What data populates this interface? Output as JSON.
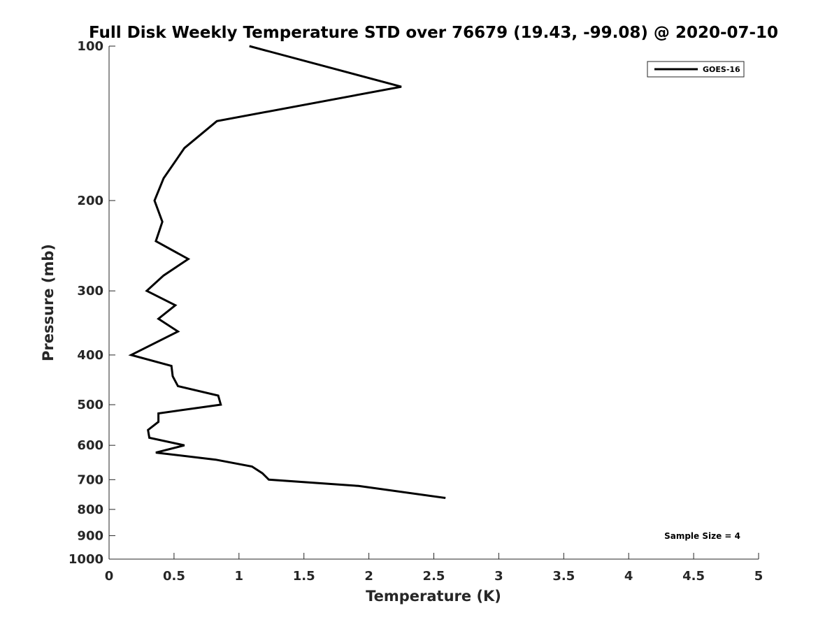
{
  "chart_data": {
    "type": "line",
    "title": "Full Disk Weekly Temperature STD over 76679 (19.43, -99.08) @ 2020-07-10",
    "xlabel": "Temperature (K)",
    "ylabel": "Pressure (mb)",
    "xlim": [
      0,
      5
    ],
    "ylim": [
      1000,
      100
    ],
    "y_scale": "log",
    "y_reversed": true,
    "x_ticks": [
      0,
      0.5,
      1,
      1.5,
      2,
      2.5,
      3,
      3.5,
      4,
      4.5,
      5
    ],
    "x_tick_labels": [
      "0",
      "0.5",
      "1",
      "1.5",
      "2",
      "2.5",
      "3",
      "3.5",
      "4",
      "4.5",
      "5"
    ],
    "y_ticks": [
      100,
      200,
      300,
      400,
      500,
      600,
      700,
      800,
      900,
      1000
    ],
    "y_tick_labels": [
      "100",
      "200",
      "300",
      "400",
      "500",
      "600",
      "700",
      "800",
      "900",
      "1000"
    ],
    "grid": false,
    "legend_position": "top-right",
    "annotation": "Sample Size = 4",
    "series": [
      {
        "name": "GOES-16",
        "color": "#000000",
        "points": [
          [
            1.08,
            100
          ],
          [
            2.25,
            120
          ],
          [
            0.83,
            140
          ],
          [
            0.58,
            158
          ],
          [
            0.42,
            181
          ],
          [
            0.35,
            200
          ],
          [
            0.41,
            220
          ],
          [
            0.36,
            240
          ],
          [
            0.61,
            260
          ],
          [
            0.42,
            280
          ],
          [
            0.29,
            300
          ],
          [
            0.51,
            320
          ],
          [
            0.38,
            340
          ],
          [
            0.53,
            360
          ],
          [
            0.17,
            400
          ],
          [
            0.48,
            420
          ],
          [
            0.49,
            440
          ],
          [
            0.53,
            460
          ],
          [
            0.84,
            480
          ],
          [
            0.86,
            500
          ],
          [
            0.38,
            520
          ],
          [
            0.38,
            540
          ],
          [
            0.3,
            560
          ],
          [
            0.31,
            580
          ],
          [
            0.58,
            600
          ],
          [
            0.36,
            620
          ],
          [
            0.82,
            640
          ],
          [
            1.1,
            660
          ],
          [
            1.18,
            680
          ],
          [
            1.23,
            700
          ],
          [
            1.92,
            720
          ],
          [
            2.59,
            760
          ]
        ]
      }
    ]
  }
}
